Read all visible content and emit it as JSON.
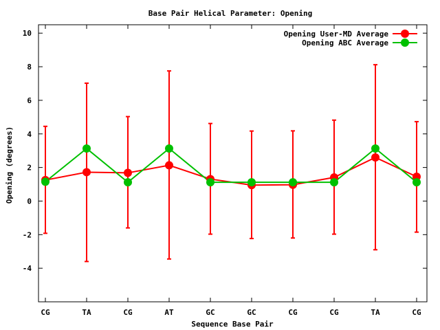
{
  "chart_data": {
    "type": "line",
    "title": "Base Pair Helical Parameter: Opening",
    "xlabel": "Sequence Base Pair",
    "ylabel": "Opening (degrees)",
    "categories": [
      "CG",
      "TA",
      "CG",
      "AT",
      "GC",
      "GC",
      "CG",
      "CG",
      "TA",
      "CG"
    ],
    "ylim": [
      -6,
      10.5
    ],
    "yticks": [
      -4,
      -2,
      0,
      2,
      4,
      6,
      8,
      10
    ],
    "ytick_labels": [
      "-4",
      "-2",
      "0",
      "2",
      "4",
      "6",
      "8",
      "10"
    ],
    "grid": false,
    "legend_position": "top-right",
    "series": [
      {
        "name": "Opening User-MD Average",
        "color": "#ff0000",
        "values": [
          1.25,
          1.72,
          1.68,
          2.13,
          1.31,
          0.95,
          0.97,
          1.41,
          2.6,
          1.45
        ],
        "error_low": [
          -1.92,
          -3.6,
          -1.6,
          -3.45,
          -1.97,
          -2.23,
          -2.2,
          -1.97,
          -2.9,
          -1.85
        ],
        "error_high": [
          4.45,
          7.02,
          5.03,
          7.75,
          4.62,
          4.17,
          4.18,
          4.82,
          8.12,
          4.73
        ]
      },
      {
        "name": "Opening ABC Average",
        "color": "#00c000",
        "values": [
          1.15,
          3.13,
          1.12,
          3.13,
          1.12,
          1.12,
          1.12,
          1.12,
          3.13,
          1.12
        ]
      }
    ]
  }
}
